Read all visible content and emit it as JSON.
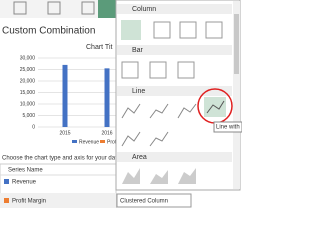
{
  "header": {
    "title": "Custom Combination"
  },
  "chart_preview": {
    "type": "bar",
    "title": "Chart Tit",
    "ylim": [
      0,
      30000
    ],
    "yticks": [
      0,
      {
        "value": 5000,
        "label": "5,000"
      },
      {
        "value": 10000,
        "label": "10,000"
      },
      {
        "value": 15000,
        "label": "15,000"
      },
      {
        "value": 20000,
        "label": "20,000"
      },
      {
        "value": 25000,
        "label": "25,000"
      },
      {
        "value": 30000,
        "label": "30,000"
      }
    ],
    "categories": [
      "2015",
      "2016"
    ],
    "values": [
      27000,
      25500
    ],
    "color": "#4472c4",
    "grid": true,
    "legend": [
      {
        "name": "Revenue",
        "color": "#4472c4"
      },
      {
        "name": "Profit",
        "color": "#ed7d31"
      }
    ]
  },
  "series_table": {
    "instruction": "Choose the chart type and axis for your data",
    "header": "Series Name",
    "rows": [
      {
        "name": "Revenue",
        "color": "#4472c4"
      },
      {
        "name": "Profit Margin",
        "color": "#ed7d31",
        "chart_type": "Clustered Column"
      }
    ]
  },
  "dropdown": {
    "sections": [
      "Column",
      "Bar",
      "Line",
      "Area"
    ],
    "tooltip": "Line with"
  }
}
